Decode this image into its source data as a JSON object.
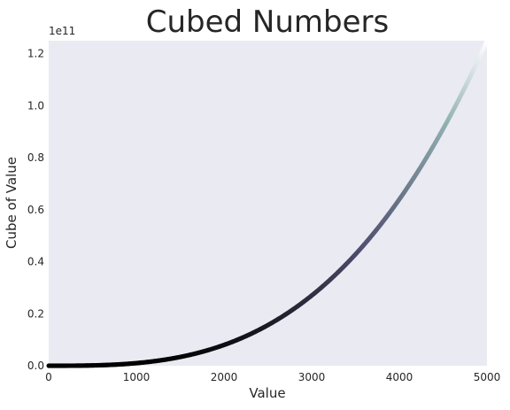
{
  "chart_data": {
    "type": "scatter",
    "title": "Cubed Numbers",
    "xlabel": "Value",
    "ylabel": "Cube of Value",
    "x_range": [
      1,
      5000
    ],
    "y_expression": "x^3",
    "xlim": [
      0,
      5000
    ],
    "ylim": [
      0,
      125000000000.0
    ],
    "x_ticks": [
      0,
      1000,
      2000,
      3000,
      4000,
      5000
    ],
    "x_tick_labels": [
      "0",
      "1000",
      "2000",
      "3000",
      "4000",
      "5000"
    ],
    "y_ticks": [
      0,
      20000000000.0,
      40000000000.0,
      60000000000.0,
      80000000000.0,
      100000000000.0,
      120000000000.0
    ],
    "y_tick_labels": [
      "0.0",
      "0.2",
      "0.4",
      "0.6",
      "0.8",
      "1.0",
      "1.2"
    ],
    "y_offset_label": "1e11",
    "colormap": "bone",
    "color_by": "y",
    "plot_background": "#eaeaf2",
    "grid": false,
    "sample_points": [
      {
        "x": 0,
        "y": 0
      },
      {
        "x": 1000,
        "y": 1000000000
      },
      {
        "x": 2000,
        "y": 8000000000
      },
      {
        "x": 3000,
        "y": 27000000000
      },
      {
        "x": 4000,
        "y": 64000000000
      },
      {
        "x": 5000,
        "y": 125000000000
      }
    ]
  }
}
